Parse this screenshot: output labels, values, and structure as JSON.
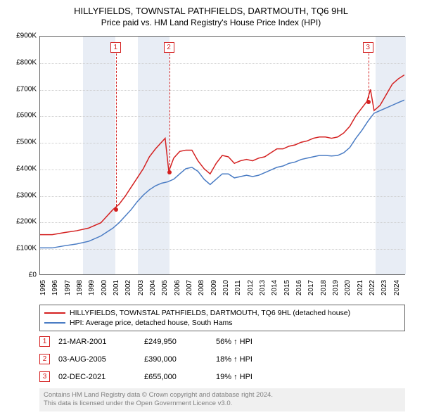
{
  "titles": {
    "main": "HILLYFIELDS, TOWNSTAL PATHFIELDS, DARTMOUTH, TQ6 9HL",
    "sub": "Price paid vs. HM Land Registry's House Price Index (HPI)"
  },
  "chart": {
    "type": "line",
    "background_color": "#ffffff",
    "grid_color": "#cccccc",
    "border_color": "#666666",
    "x_min": 1995,
    "x_max": 2025,
    "y_min": 0,
    "y_max": 900000,
    "y_ticks": [
      0,
      100000,
      200000,
      300000,
      400000,
      500000,
      600000,
      700000,
      800000,
      900000
    ],
    "y_tick_labels": [
      "£0",
      "£100K",
      "£200K",
      "£300K",
      "£400K",
      "£500K",
      "£600K",
      "£700K",
      "£800K",
      "£900K"
    ],
    "x_ticks": [
      1995,
      1996,
      1997,
      1998,
      1999,
      2000,
      2001,
      2002,
      2003,
      2004,
      2005,
      2006,
      2007,
      2008,
      2009,
      2010,
      2011,
      2012,
      2013,
      2014,
      2015,
      2016,
      2017,
      2018,
      2019,
      2020,
      2021,
      2022,
      2023,
      2024
    ],
    "shaded_bands": [
      {
        "from": 1998.5,
        "to": 2001.2,
        "color": "#e8edf5"
      },
      {
        "from": 2003.0,
        "to": 2005.6,
        "color": "#e8edf5"
      },
      {
        "from": 2022.5,
        "to": 2025.0,
        "color": "#e8edf5"
      }
    ],
    "series": [
      {
        "name": "red",
        "color": "#d42020",
        "line_width": 1.5,
        "points": [
          [
            1995,
            150000
          ],
          [
            1996,
            150000
          ],
          [
            1997,
            158000
          ],
          [
            1998,
            165000
          ],
          [
            1999,
            175000
          ],
          [
            2000,
            195000
          ],
          [
            2001,
            245000
          ],
          [
            2001.5,
            265000
          ],
          [
            2002,
            295000
          ],
          [
            2002.5,
            330000
          ],
          [
            2003,
            365000
          ],
          [
            2003.5,
            400000
          ],
          [
            2004,
            445000
          ],
          [
            2004.5,
            475000
          ],
          [
            2005,
            500000
          ],
          [
            2005.3,
            515000
          ],
          [
            2005.6,
            390000
          ],
          [
            2006,
            440000
          ],
          [
            2006.5,
            465000
          ],
          [
            2007,
            470000
          ],
          [
            2007.5,
            470000
          ],
          [
            2008,
            430000
          ],
          [
            2008.5,
            400000
          ],
          [
            2009,
            380000
          ],
          [
            2009.5,
            420000
          ],
          [
            2010,
            450000
          ],
          [
            2010.5,
            445000
          ],
          [
            2011,
            420000
          ],
          [
            2011.5,
            430000
          ],
          [
            2012,
            435000
          ],
          [
            2012.5,
            430000
          ],
          [
            2013,
            440000
          ],
          [
            2013.5,
            445000
          ],
          [
            2014,
            460000
          ],
          [
            2014.5,
            475000
          ],
          [
            2015,
            475000
          ],
          [
            2015.5,
            485000
          ],
          [
            2016,
            490000
          ],
          [
            2016.5,
            500000
          ],
          [
            2017,
            505000
          ],
          [
            2017.5,
            515000
          ],
          [
            2018,
            520000
          ],
          [
            2018.5,
            520000
          ],
          [
            2019,
            515000
          ],
          [
            2019.5,
            520000
          ],
          [
            2020,
            535000
          ],
          [
            2020.5,
            560000
          ],
          [
            2021,
            600000
          ],
          [
            2021.5,
            630000
          ],
          [
            2021.92,
            655000
          ],
          [
            2022.2,
            700000
          ],
          [
            2022.5,
            620000
          ],
          [
            2023,
            640000
          ],
          [
            2023.5,
            680000
          ],
          [
            2024,
            720000
          ],
          [
            2024.5,
            740000
          ],
          [
            2025,
            755000
          ]
        ]
      },
      {
        "name": "blue",
        "color": "#4a7cc4",
        "line_width": 1.5,
        "points": [
          [
            1995,
            100000
          ],
          [
            1996,
            100000
          ],
          [
            1997,
            108000
          ],
          [
            1998,
            115000
          ],
          [
            1999,
            125000
          ],
          [
            2000,
            145000
          ],
          [
            2001,
            175000
          ],
          [
            2001.5,
            195000
          ],
          [
            2002,
            220000
          ],
          [
            2002.5,
            245000
          ],
          [
            2003,
            275000
          ],
          [
            2003.5,
            300000
          ],
          [
            2004,
            320000
          ],
          [
            2004.5,
            335000
          ],
          [
            2005,
            345000
          ],
          [
            2005.5,
            350000
          ],
          [
            2006,
            360000
          ],
          [
            2006.5,
            380000
          ],
          [
            2007,
            400000
          ],
          [
            2007.5,
            405000
          ],
          [
            2008,
            390000
          ],
          [
            2008.5,
            360000
          ],
          [
            2009,
            340000
          ],
          [
            2009.5,
            360000
          ],
          [
            2010,
            380000
          ],
          [
            2010.5,
            380000
          ],
          [
            2011,
            365000
          ],
          [
            2011.5,
            370000
          ],
          [
            2012,
            375000
          ],
          [
            2012.5,
            370000
          ],
          [
            2013,
            375000
          ],
          [
            2013.5,
            385000
          ],
          [
            2014,
            395000
          ],
          [
            2014.5,
            405000
          ],
          [
            2015,
            410000
          ],
          [
            2015.5,
            420000
          ],
          [
            2016,
            425000
          ],
          [
            2016.5,
            435000
          ],
          [
            2017,
            440000
          ],
          [
            2017.5,
            445000
          ],
          [
            2018,
            450000
          ],
          [
            2018.5,
            450000
          ],
          [
            2019,
            448000
          ],
          [
            2019.5,
            450000
          ],
          [
            2020,
            460000
          ],
          [
            2020.5,
            480000
          ],
          [
            2021,
            515000
          ],
          [
            2021.5,
            545000
          ],
          [
            2022,
            580000
          ],
          [
            2022.5,
            610000
          ],
          [
            2023,
            620000
          ],
          [
            2023.5,
            630000
          ],
          [
            2024,
            640000
          ],
          [
            2024.5,
            650000
          ],
          [
            2025,
            660000
          ]
        ]
      }
    ],
    "markers": [
      {
        "n": "1",
        "x": 2001.22,
        "price": 249950
      },
      {
        "n": "2",
        "x": 2005.59,
        "price": 390000
      },
      {
        "n": "3",
        "x": 2021.92,
        "price": 655000
      }
    ]
  },
  "legend": {
    "items": [
      {
        "color": "#d42020",
        "label": "HILLYFIELDS, TOWNSTAL PATHFIELDS, DARTMOUTH, TQ6 9HL (detached house)"
      },
      {
        "color": "#4a7cc4",
        "label": "HPI: Average price, detached house, South Hams"
      }
    ]
  },
  "sales": [
    {
      "n": "1",
      "date": "21-MAR-2001",
      "price": "£249,950",
      "pct": "56% ↑ HPI"
    },
    {
      "n": "2",
      "date": "03-AUG-2005",
      "price": "£390,000",
      "pct": "18% ↑ HPI"
    },
    {
      "n": "3",
      "date": "02-DEC-2021",
      "price": "£655,000",
      "pct": "19% ↑ HPI"
    }
  ],
  "footer": {
    "line1": "Contains HM Land Registry data © Crown copyright and database right 2024.",
    "line2": "This data is licensed under the Open Government Licence v3.0."
  }
}
